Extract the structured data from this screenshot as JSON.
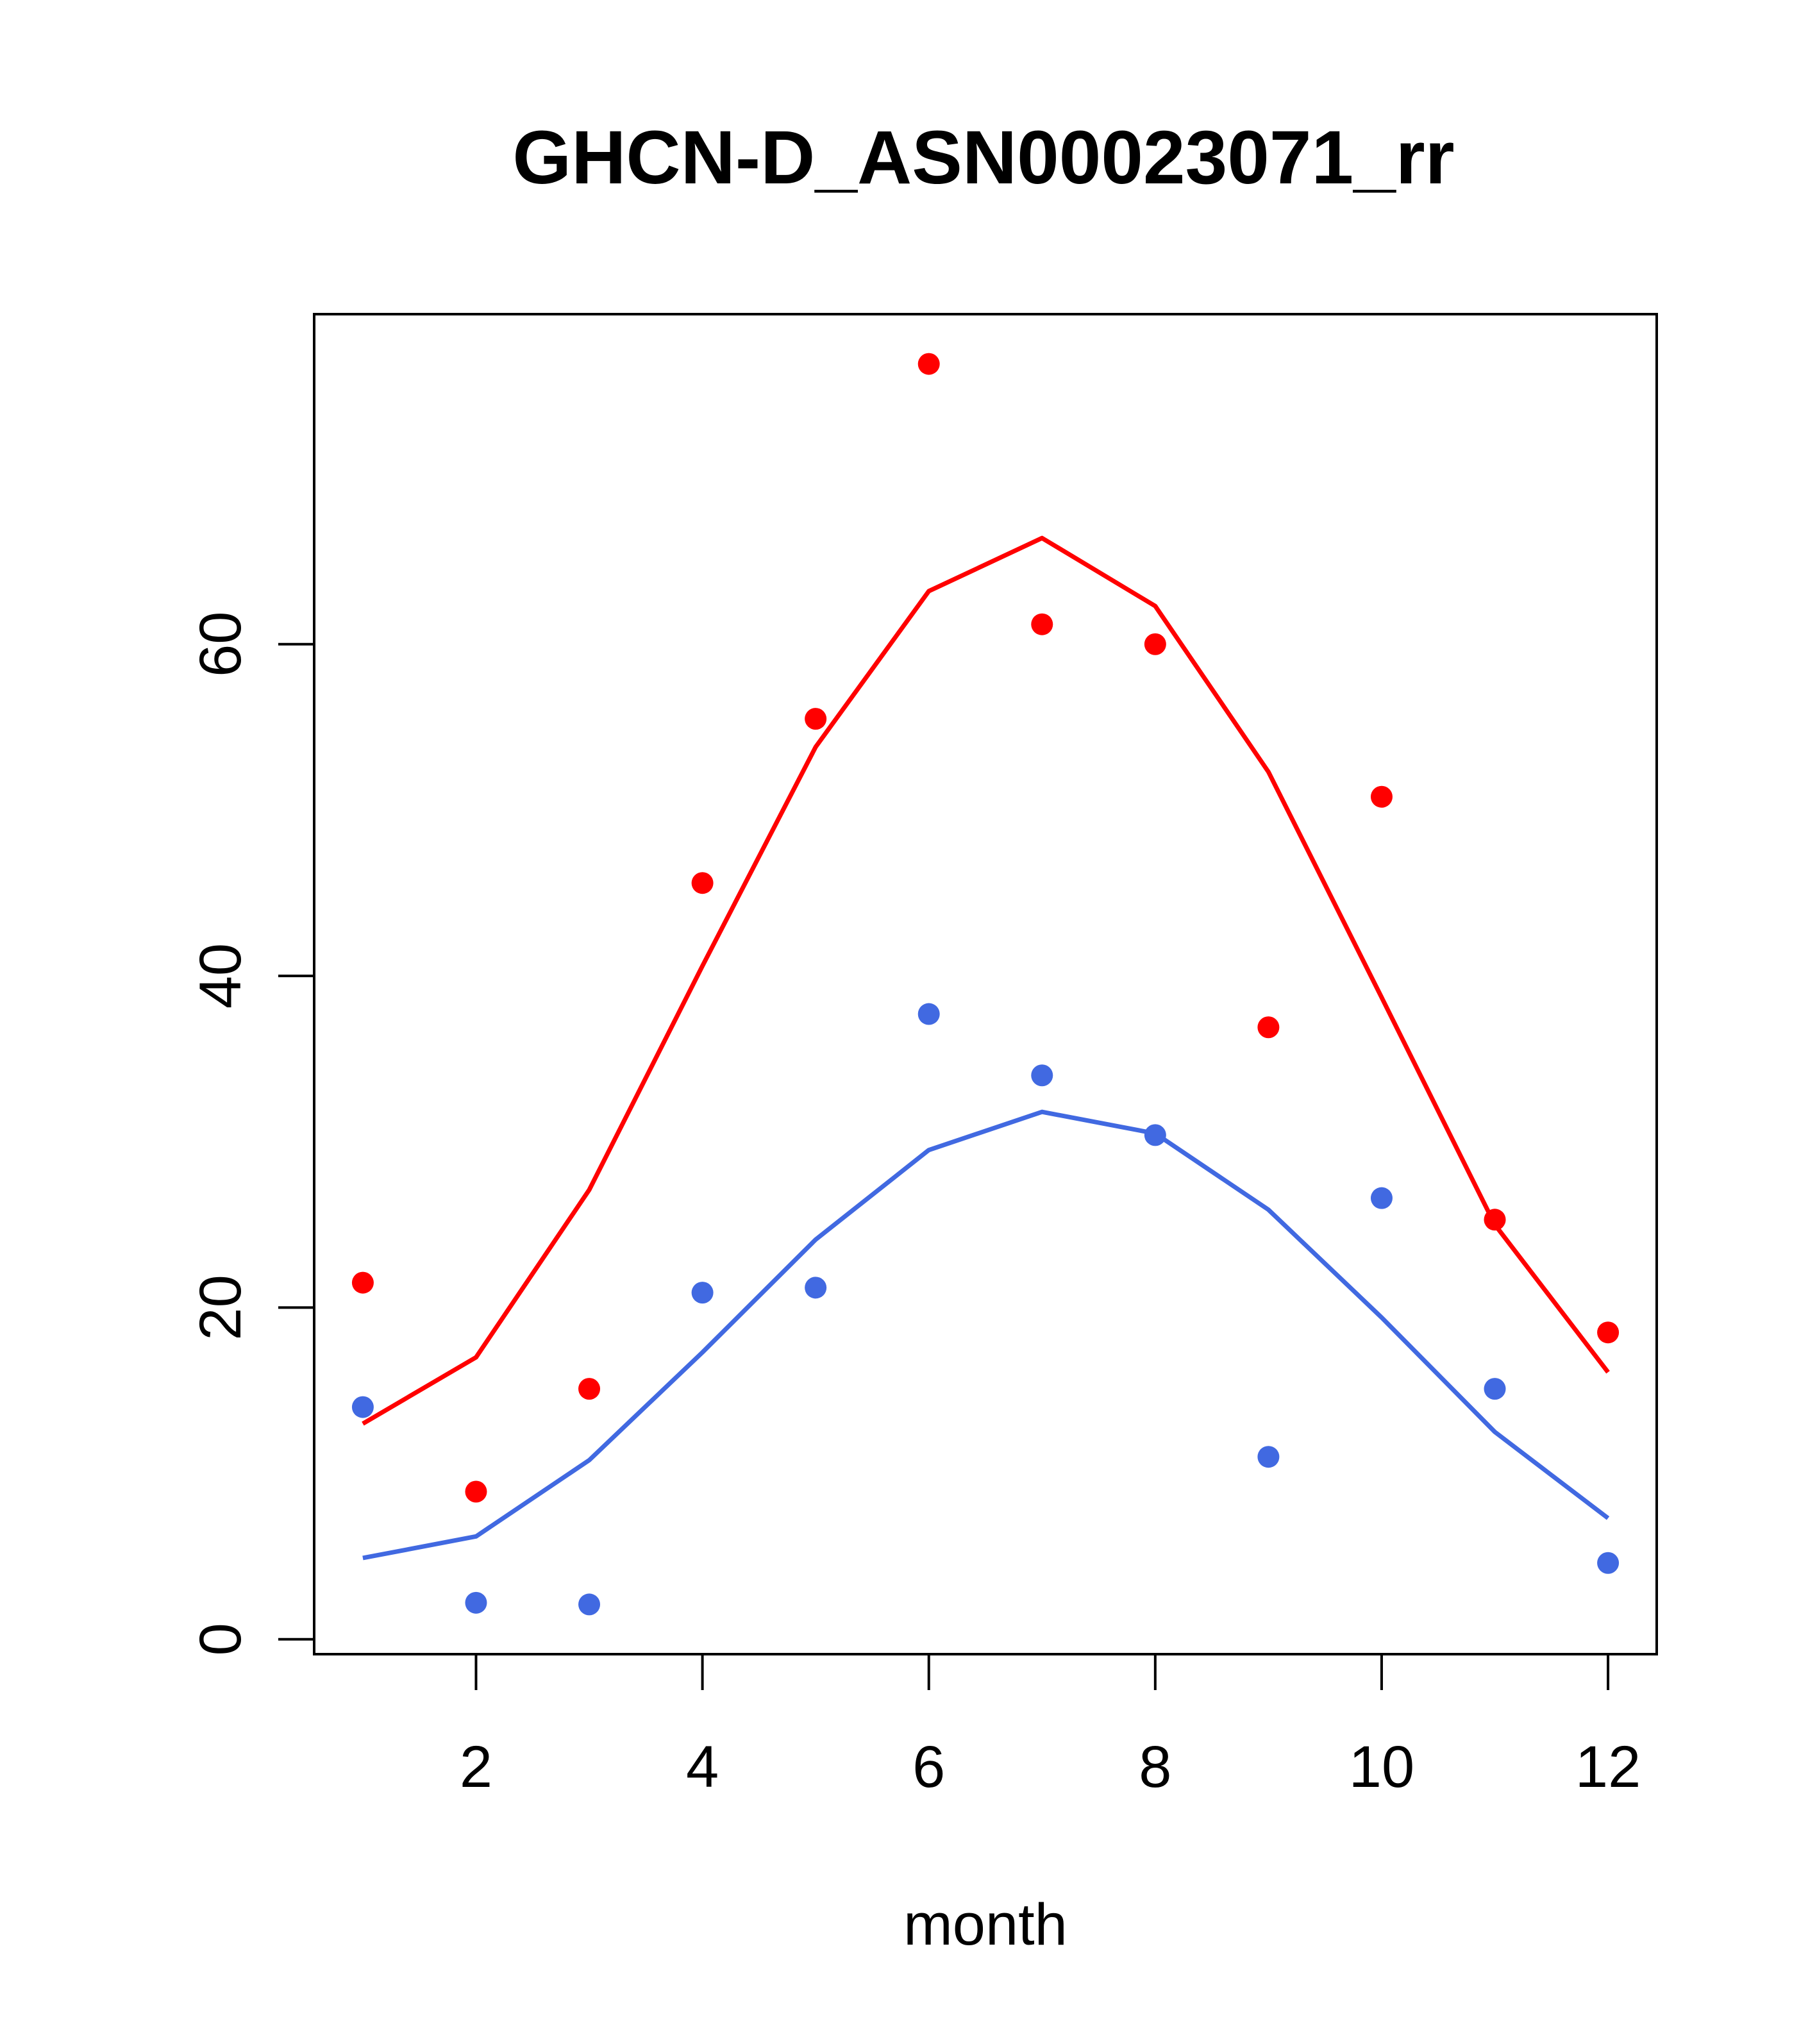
{
  "chart_data": {
    "type": "line",
    "title": "GHCN-D_ASN00023071_rr",
    "xlabel": "month",
    "ylabel": "",
    "xlim": [
      0.57,
      12.43
    ],
    "ylim": [
      -0.9,
      79.9
    ],
    "x_ticks": [
      2,
      4,
      6,
      8,
      10,
      12
    ],
    "y_ticks": [
      0,
      20,
      40,
      60
    ],
    "grid": false,
    "legend": "none",
    "x": [
      1,
      2,
      3,
      4,
      5,
      6,
      7,
      8,
      9,
      10,
      11,
      12
    ],
    "series": [
      {
        "color": "#ff0000",
        "points": [
          21.5,
          8.9,
          15.1,
          45.6,
          55.5,
          76.9,
          61.2,
          60.0,
          36.9,
          50.8,
          25.3,
          18.5
        ],
        "line": [
          13.0,
          17.0,
          27.1,
          40.6,
          53.8,
          63.2,
          66.4,
          62.3,
          52.3,
          38.7,
          25.0,
          16.1
        ]
      },
      {
        "color": "#4169e1",
        "points": [
          14.0,
          2.2,
          2.1,
          20.9,
          21.2,
          37.7,
          34.0,
          30.4,
          11.0,
          26.6,
          15.1,
          4.6
        ],
        "line": [
          4.9,
          6.2,
          10.8,
          17.3,
          24.1,
          29.5,
          31.8,
          30.5,
          25.9,
          19.4,
          12.5,
          7.3
        ]
      }
    ]
  }
}
